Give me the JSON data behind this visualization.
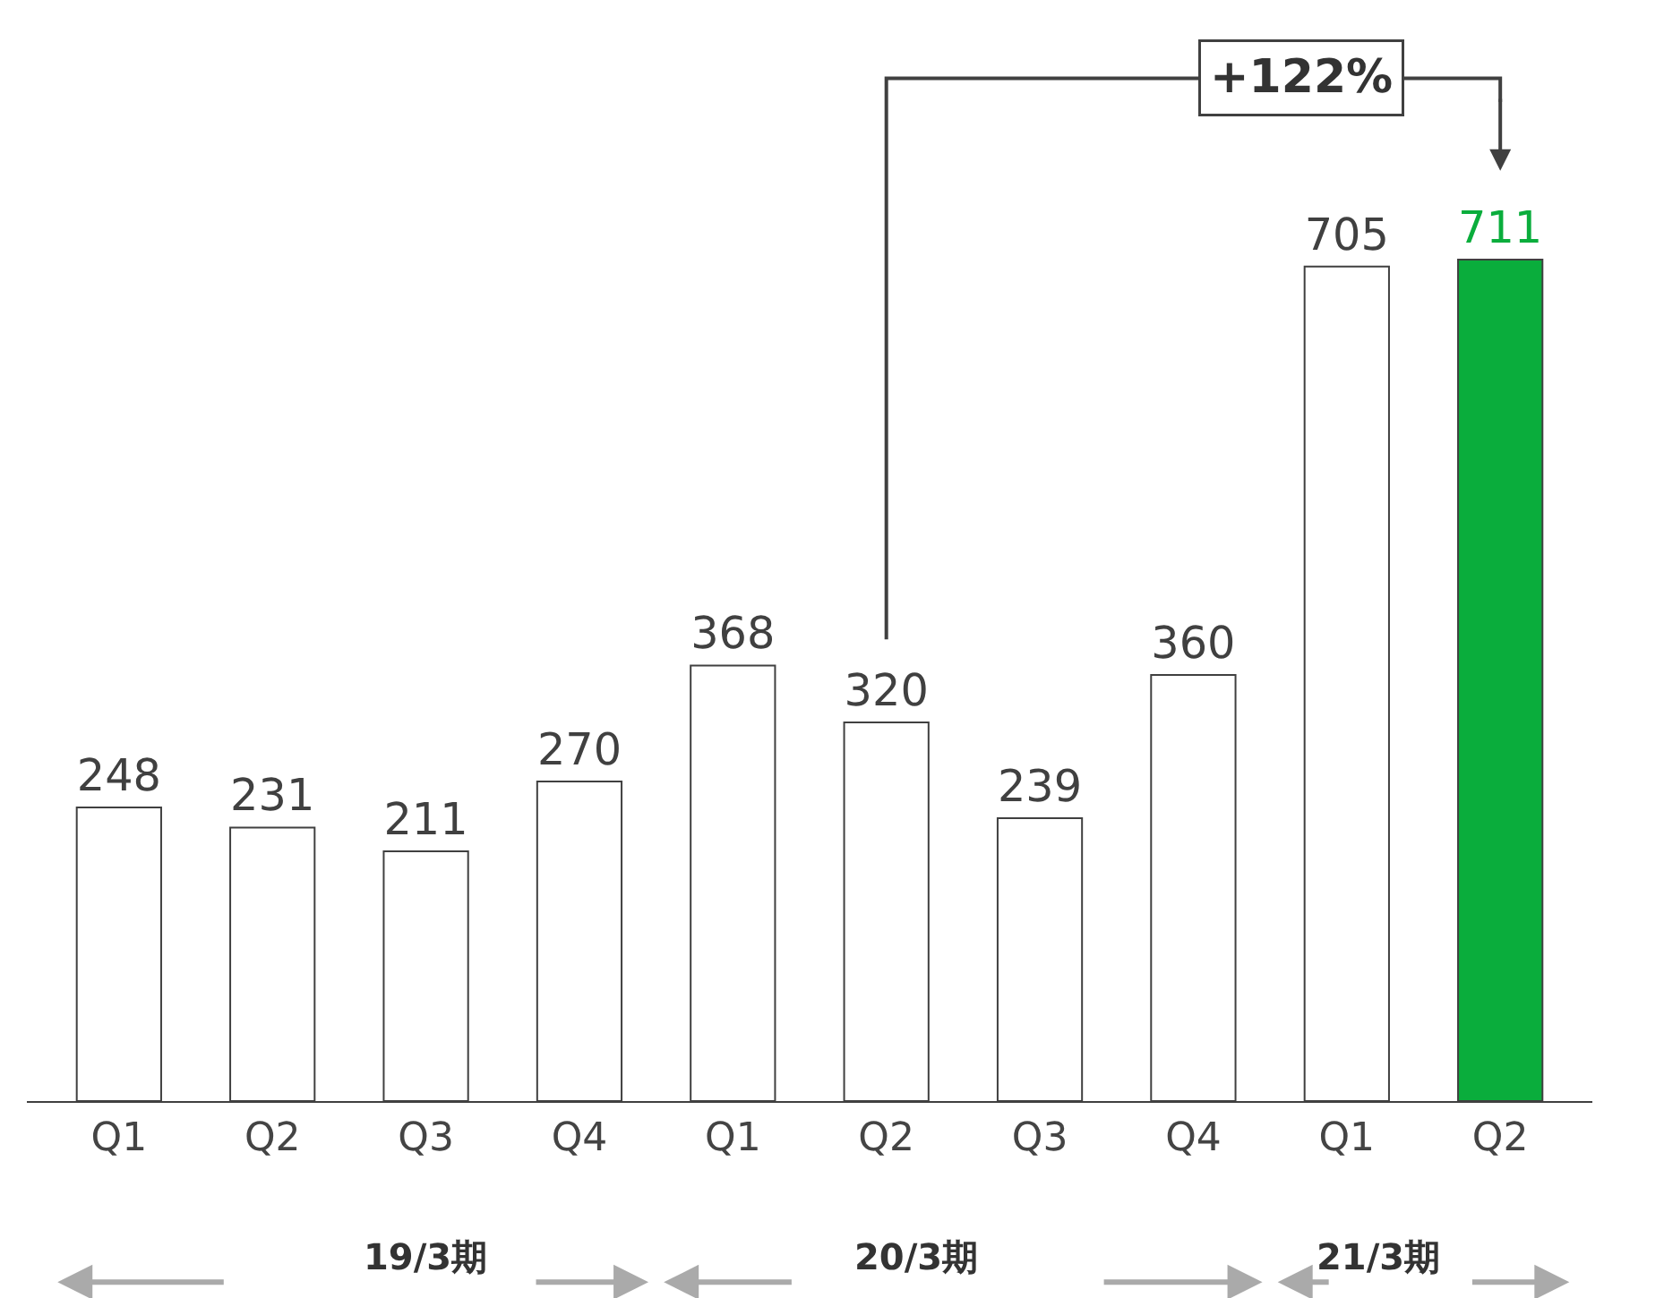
{
  "chart_data": {
    "type": "bar",
    "categories": [
      "Q1",
      "Q2",
      "Q3",
      "Q4",
      "Q1",
      "Q2",
      "Q3",
      "Q4",
      "Q1",
      "Q2"
    ],
    "values": [
      248,
      231,
      211,
      270,
      368,
      320,
      239,
      360,
      705,
      711
    ],
    "colors": [
      "#ffffff",
      "#ffffff",
      "#ffffff",
      "#ffffff",
      "#ffffff",
      "#ffffff",
      "#ffffff",
      "#ffffff",
      "#ffffff",
      "#0aad3c"
    ],
    "data_labels": true,
    "ylim": [
      0,
      900
    ],
    "tick_labels": "x",
    "grid": false,
    "legend": false,
    "annotations": [
      "+122%",
      "19/3期",
      "20/3期",
      "21/3期"
    ]
  }
}
